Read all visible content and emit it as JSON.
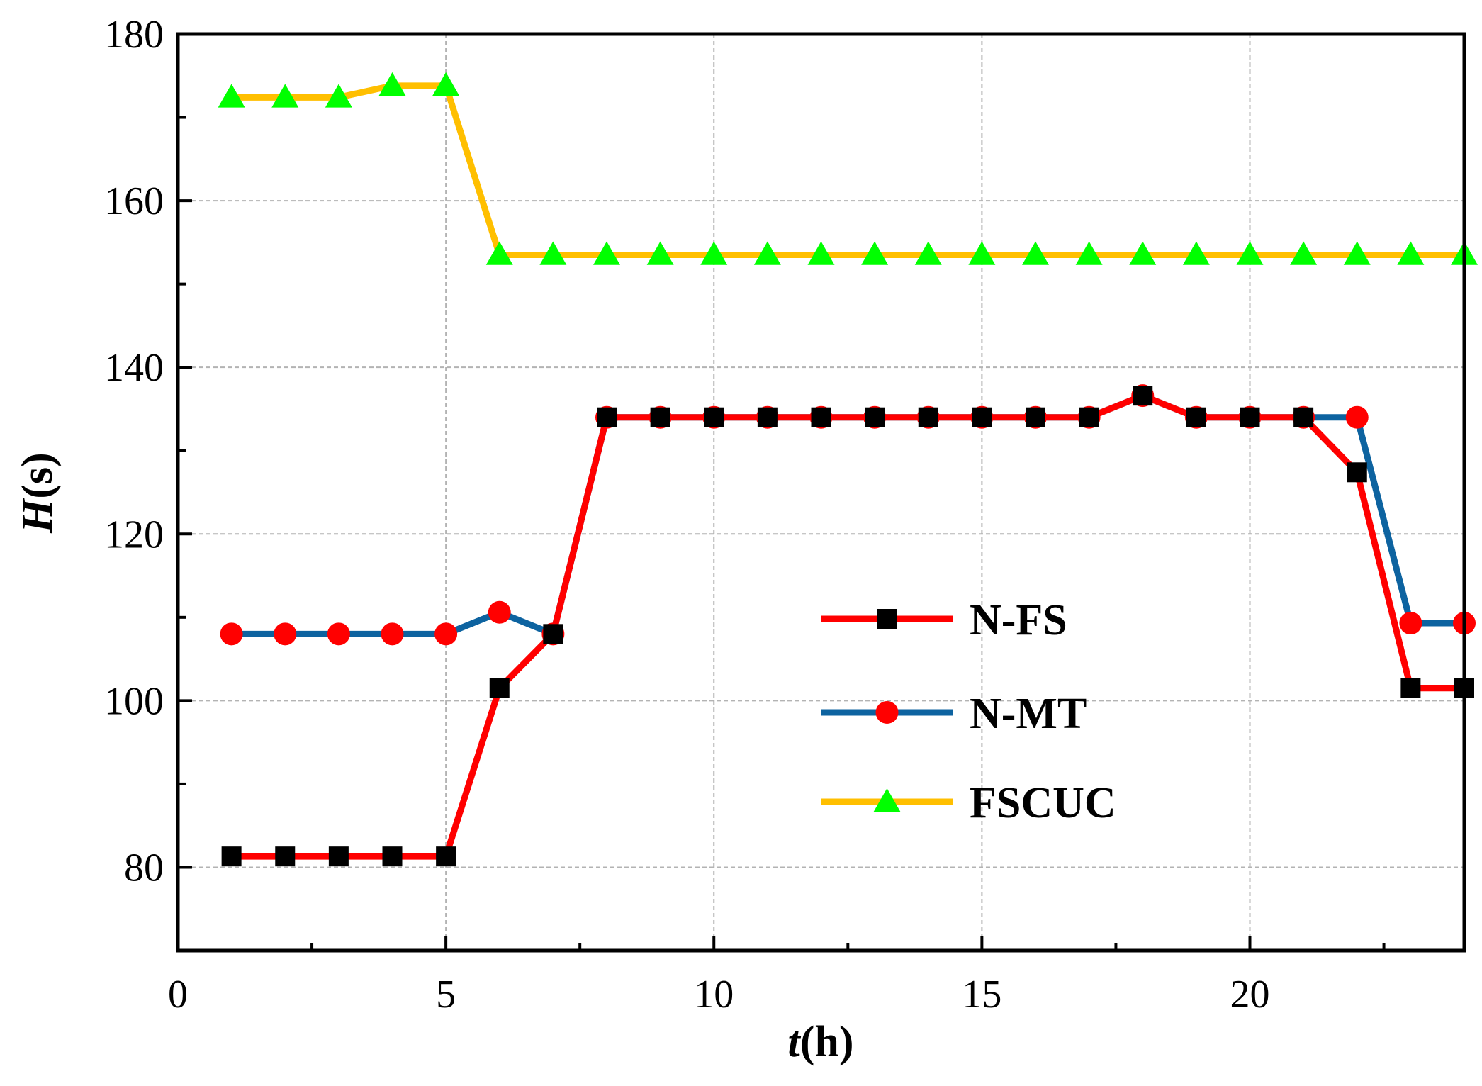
{
  "chart_data": {
    "type": "line",
    "title": "",
    "xlabel": {
      "italic": "t",
      "rest": "(h)"
    },
    "ylabel": {
      "italic": "H",
      "rest": "(s)"
    },
    "xlim": [
      0,
      24
    ],
    "ylim": [
      70,
      180
    ],
    "xticks": [
      0,
      5,
      10,
      15,
      20
    ],
    "yticks": [
      80,
      100,
      120,
      140,
      160,
      180
    ],
    "grid": true,
    "legend_position": "center-right",
    "x": [
      1,
      2,
      3,
      4,
      5,
      6,
      7,
      8,
      9,
      10,
      11,
      12,
      13,
      14,
      15,
      16,
      17,
      18,
      19,
      20,
      21,
      22,
      23,
      24
    ],
    "series": [
      {
        "name": "N-FS",
        "line_color": "#ff0000",
        "marker": "square",
        "marker_color": "#000000",
        "values": [
          81.3,
          81.3,
          81.3,
          81.3,
          81.3,
          101.5,
          108,
          134,
          134,
          134,
          134,
          134,
          134,
          134,
          134,
          134,
          134,
          136.6,
          134,
          134,
          134,
          127.4,
          101.5,
          101.5
        ]
      },
      {
        "name": "N-MT",
        "line_color": "#0d63a0",
        "marker": "circle",
        "marker_color": "#ff0000",
        "values": [
          108,
          108,
          108,
          108,
          108,
          110.6,
          108,
          134,
          134,
          134,
          134,
          134,
          134,
          134,
          134,
          134,
          134,
          136.6,
          134,
          134,
          134,
          134,
          109.3,
          109.3
        ]
      },
      {
        "name": "FSCUC",
        "line_color": "#ffbf00",
        "marker": "triangle",
        "marker_color": "#00ff00",
        "values": [
          172.4,
          172.4,
          172.4,
          173.8,
          173.8,
          153.5,
          153.5,
          153.5,
          153.5,
          153.5,
          153.5,
          153.5,
          153.5,
          153.5,
          153.5,
          153.5,
          153.5,
          153.5,
          153.5,
          153.5,
          153.5,
          153.5,
          153.5,
          153.5
        ]
      }
    ]
  }
}
